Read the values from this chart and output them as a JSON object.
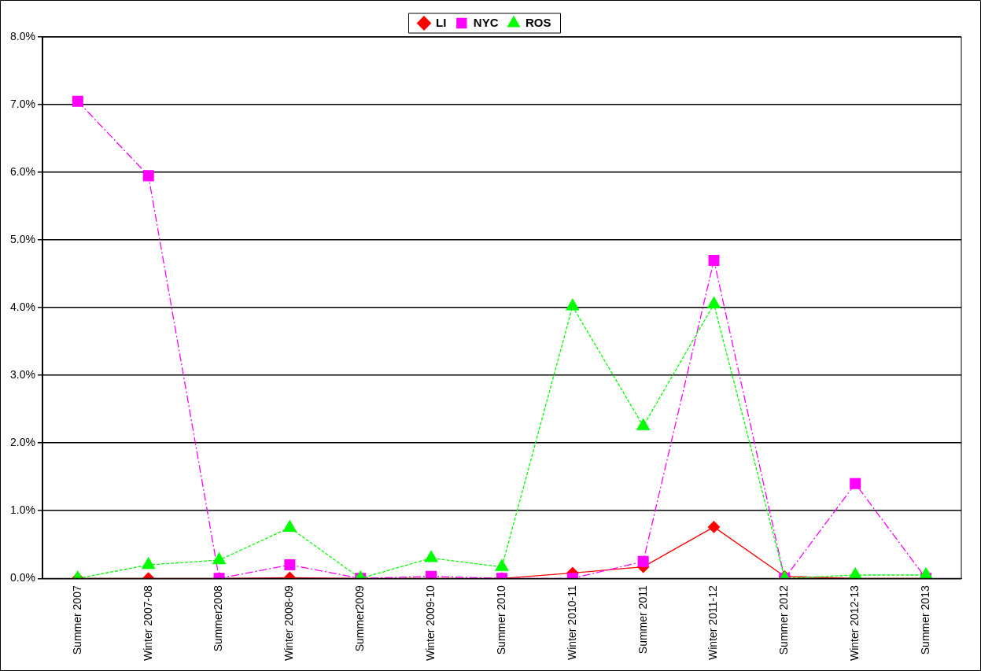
{
  "chart_data": {
    "type": "line",
    "categories": [
      "Summer 2007",
      "Winter 2007-08",
      "Summer2008",
      "Winter 2008-09",
      "Summer2009",
      "Winter 2009-10",
      "Summer 2010",
      "Winter 2010-11",
      "Summer 2011",
      "Winter 2011-12",
      "Summer 2012",
      "Winter 2012-13",
      "Summer 2013"
    ],
    "series": [
      {
        "name": "LI",
        "color": "#ff0000",
        "marker": "diamond",
        "line_style": "solid",
        "values": [
          0,
          0,
          0,
          0.01,
          0,
          0,
          0,
          0.08,
          0.17,
          0.76,
          0.03,
          0,
          0
        ]
      },
      {
        "name": "NYC",
        "color": "#ff00ff",
        "marker": "square",
        "line_style": "dashed",
        "values": [
          7.05,
          5.95,
          0,
          0.2,
          0,
          0.03,
          0,
          0,
          0.25,
          4.7,
          0,
          1.4,
          0
        ]
      },
      {
        "name": "ROS",
        "color": "#00ff00",
        "marker": "triangle",
        "line_style": "dotted",
        "values": [
          0,
          0.2,
          0.27,
          0.75,
          0,
          0.3,
          0.17,
          4.02,
          2.25,
          4.05,
          0,
          0.05,
          0.05
        ]
      }
    ],
    "ylim": [
      0,
      8
    ],
    "yticks": [
      {
        "value": 0,
        "label": "0.0%"
      },
      {
        "value": 1,
        "label": "1.0%"
      },
      {
        "value": 2,
        "label": "2.0%"
      },
      {
        "value": 3,
        "label": "3.0%"
      },
      {
        "value": 4,
        "label": "4.0%"
      },
      {
        "value": 5,
        "label": "5.0%"
      },
      {
        "value": 6,
        "label": "6.0%"
      },
      {
        "value": 7,
        "label": "7.0%"
      },
      {
        "value": 8,
        "label": "8.0%"
      }
    ],
    "grid": "y",
    "legend": "top"
  }
}
